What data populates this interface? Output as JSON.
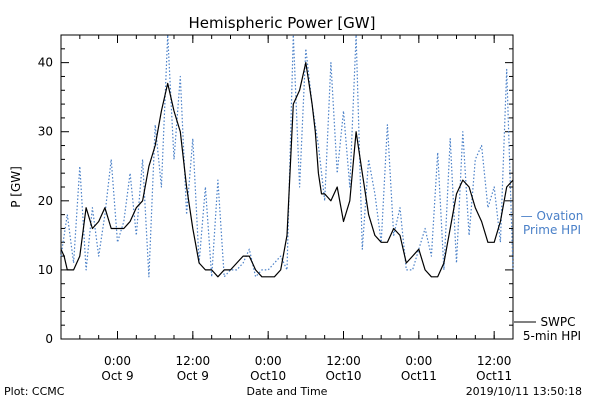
{
  "chart_data": {
    "type": "line",
    "title": "Hemispheric Power [GW]",
    "xlabel": "Date and Time",
    "ylabel": "P [GW]",
    "ylim": [
      0,
      44
    ],
    "yticks": [
      0,
      10,
      20,
      30,
      40
    ],
    "x_range": [
      "2019-10-08 15:00",
      "2019-10-11 15:00"
    ],
    "x_ticks": [
      {
        "t": "2019-10-09 00:00",
        "time": "0:00",
        "date": "Oct 9"
      },
      {
        "t": "2019-10-09 12:00",
        "time": "12:00",
        "date": "Oct 9"
      },
      {
        "t": "2019-10-10 00:00",
        "time": "0:00",
        "date": "Oct10"
      },
      {
        "t": "2019-10-10 12:00",
        "time": "12:00",
        "date": "Oct10"
      },
      {
        "t": "2019-10-11 00:00",
        "time": "0:00",
        "date": "Oct11"
      },
      {
        "t": "2019-10-11 12:00",
        "time": "12:00",
        "date": "Oct11"
      }
    ],
    "grid": false,
    "legend_position": "right",
    "series": [
      {
        "name": "SWPC 5-min HPI",
        "legend_lines": [
          "SWPC",
          "5-min HPI"
        ],
        "color": "#000000",
        "style": "solid",
        "x": [
          "2019-10-08 15:00",
          "2019-10-08 15:30",
          "2019-10-08 16:00",
          "2019-10-08 17:00",
          "2019-10-08 18:00",
          "2019-10-08 19:00",
          "2019-10-08 20:00",
          "2019-10-08 21:00",
          "2019-10-08 22:00",
          "2019-10-08 23:00",
          "2019-10-09 00:00",
          "2019-10-09 01:00",
          "2019-10-09 02:00",
          "2019-10-09 03:00",
          "2019-10-09 04:00",
          "2019-10-09 05:00",
          "2019-10-09 06:00",
          "2019-10-09 07:00",
          "2019-10-09 08:00",
          "2019-10-09 09:00",
          "2019-10-09 10:00",
          "2019-10-09 11:00",
          "2019-10-09 12:00",
          "2019-10-09 13:00",
          "2019-10-09 14:00",
          "2019-10-09 15:00",
          "2019-10-09 16:00",
          "2019-10-09 17:00",
          "2019-10-09 18:00",
          "2019-10-09 19:00",
          "2019-10-09 20:00",
          "2019-10-09 21:00",
          "2019-10-09 22:00",
          "2019-10-09 23:00",
          "2019-10-10 00:00",
          "2019-10-10 01:00",
          "2019-10-10 02:00",
          "2019-10-10 03:00",
          "2019-10-10 04:00",
          "2019-10-10 05:00",
          "2019-10-10 06:00",
          "2019-10-10 06:30",
          "2019-10-10 07:00",
          "2019-10-10 07:30",
          "2019-10-10 08:00",
          "2019-10-10 08:30",
          "2019-10-10 09:00",
          "2019-10-10 10:00",
          "2019-10-10 11:00",
          "2019-10-10 12:00",
          "2019-10-10 13:00",
          "2019-10-10 14:00",
          "2019-10-10 15:00",
          "2019-10-10 16:00",
          "2019-10-10 17:00",
          "2019-10-10 18:00",
          "2019-10-10 19:00",
          "2019-10-10 20:00",
          "2019-10-10 21:00",
          "2019-10-10 22:00",
          "2019-10-10 23:00",
          "2019-10-11 00:00",
          "2019-10-11 01:00",
          "2019-10-11 02:00",
          "2019-10-11 03:00",
          "2019-10-11 04:00",
          "2019-10-11 05:00",
          "2019-10-11 06:00",
          "2019-10-11 07:00",
          "2019-10-11 08:00",
          "2019-10-11 09:00",
          "2019-10-11 10:00",
          "2019-10-11 11:00",
          "2019-10-11 12:00",
          "2019-10-11 13:00",
          "2019-10-11 14:00",
          "2019-10-11 15:00"
        ],
        "y": [
          13,
          12,
          10,
          10,
          12,
          19,
          16,
          17,
          19,
          16,
          16,
          16,
          17,
          19,
          20,
          25,
          28,
          33,
          37,
          33,
          30,
          22,
          16,
          11,
          10,
          10,
          9,
          10,
          10,
          11,
          12,
          12,
          10,
          9,
          9,
          9,
          10,
          15,
          34,
          36,
          40,
          37,
          34,
          30,
          24,
          21,
          21,
          20,
          22,
          17,
          20,
          30,
          24,
          18,
          15,
          14,
          14,
          16,
          15,
          11,
          12,
          13,
          10,
          9,
          9,
          11,
          16,
          21,
          23,
          22,
          19,
          17,
          14,
          14,
          17,
          22,
          23
        ]
      },
      {
        "name": "Ovation Prime HPI",
        "legend_lines": [
          "— Ovation",
          "Prime HPI"
        ],
        "color": "#4a80c8",
        "style": "dotted",
        "x": [
          "2019-10-08 15:00",
          "2019-10-08 16:00",
          "2019-10-08 17:00",
          "2019-10-08 18:00",
          "2019-10-08 19:00",
          "2019-10-08 20:00",
          "2019-10-08 21:00",
          "2019-10-08 22:00",
          "2019-10-08 23:00",
          "2019-10-09 00:00",
          "2019-10-09 01:00",
          "2019-10-09 02:00",
          "2019-10-09 03:00",
          "2019-10-09 04:00",
          "2019-10-09 05:00",
          "2019-10-09 06:00",
          "2019-10-09 07:00",
          "2019-10-09 08:00",
          "2019-10-09 09:00",
          "2019-10-09 10:00",
          "2019-10-09 11:00",
          "2019-10-09 12:00",
          "2019-10-09 13:00",
          "2019-10-09 14:00",
          "2019-10-09 15:00",
          "2019-10-09 16:00",
          "2019-10-09 17:00",
          "2019-10-09 18:00",
          "2019-10-09 19:00",
          "2019-10-09 20:00",
          "2019-10-09 21:00",
          "2019-10-09 22:00",
          "2019-10-09 23:00",
          "2019-10-10 00:00",
          "2019-10-10 01:00",
          "2019-10-10 02:00",
          "2019-10-10 03:00",
          "2019-10-10 04:00",
          "2019-10-10 05:00",
          "2019-10-10 06:00",
          "2019-10-10 07:00",
          "2019-10-10 08:00",
          "2019-10-10 09:00",
          "2019-10-10 10:00",
          "2019-10-10 11:00",
          "2019-10-10 12:00",
          "2019-10-10 13:00",
          "2019-10-10 14:00",
          "2019-10-10 15:00",
          "2019-10-10 16:00",
          "2019-10-10 17:00",
          "2019-10-10 18:00",
          "2019-10-10 19:00",
          "2019-10-10 20:00",
          "2019-10-10 21:00",
          "2019-10-10 22:00",
          "2019-10-10 23:00",
          "2019-10-11 00:00",
          "2019-10-11 01:00",
          "2019-10-11 02:00",
          "2019-10-11 03:00",
          "2019-10-11 04:00",
          "2019-10-11 05:00",
          "2019-10-11 06:00",
          "2019-10-11 07:00",
          "2019-10-11 08:00",
          "2019-10-11 09:00",
          "2019-10-11 10:00",
          "2019-10-11 11:00",
          "2019-10-11 12:00",
          "2019-10-11 13:00",
          "2019-10-11 14:00",
          "2019-10-11 15:00"
        ],
        "y": [
          12,
          18,
          11,
          25,
          10,
          19,
          12,
          18,
          26,
          14,
          17,
          24,
          15,
          26,
          9,
          31,
          22,
          44,
          26,
          38,
          18,
          29,
          11,
          22,
          9,
          23,
          9,
          10,
          10,
          11,
          13,
          9,
          10,
          10,
          11,
          12,
          10,
          44,
          22,
          42,
          34,
          28,
          20,
          40,
          24,
          33,
          22,
          44,
          13,
          26,
          21,
          14,
          31,
          15,
          19,
          10,
          10,
          13,
          16,
          12,
          27,
          10,
          29,
          11,
          30,
          15,
          26,
          28,
          19,
          22,
          14,
          39,
          10
        ]
      }
    ]
  },
  "footer": {
    "left": "Plot: CCMC",
    "center": "Date and Time",
    "right": "2019/10/11  13:50:18"
  }
}
